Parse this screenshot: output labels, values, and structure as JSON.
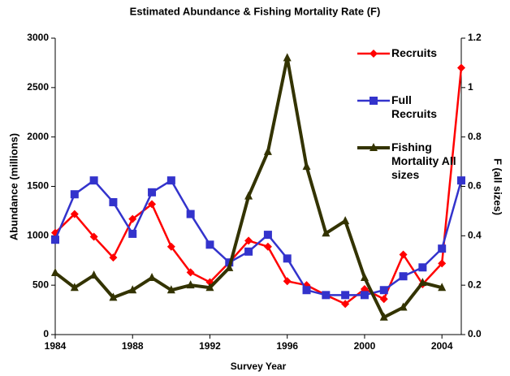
{
  "chart_data": {
    "type": "line",
    "title": "Estimated Abundance & Fishing Mortality Rate (F)",
    "x_label": "Survey Year",
    "y_label": "Abundance (millions)",
    "y2_label": "F (all sizes)",
    "x": [
      1984,
      1985,
      1986,
      1987,
      1988,
      1989,
      1990,
      1991,
      1992,
      1993,
      1994,
      1995,
      1996,
      1997,
      1998,
      1999,
      2000,
      2001,
      2002,
      2003,
      2004,
      2005
    ],
    "xlim": [
      1984,
      2005
    ],
    "xticks": [
      1984,
      1988,
      1992,
      1996,
      2000,
      2004
    ],
    "ylim": [
      0,
      3000
    ],
    "yticks": [
      0,
      500,
      1000,
      1500,
      2000,
      2500,
      3000
    ],
    "y2lim": [
      0,
      1.2
    ],
    "y2ticks": [
      {
        "value": 0,
        "label": "0.0"
      },
      0.2,
      0.4,
      0.6,
      0.8,
      1,
      1.2
    ],
    "legend": "upper right",
    "series": [
      {
        "name": "Recruits",
        "color": "#ff0000",
        "marker": "diamond",
        "values": [
          1030,
          1220,
          990,
          780,
          1170,
          1320,
          890,
          630,
          530,
          730,
          950,
          890,
          540,
          500,
          400,
          310,
          460,
          360,
          810,
          510,
          720,
          2700
        ]
      },
      {
        "name": "Full Recruits",
        "color": "#3333cc",
        "marker": "square",
        "values": [
          960,
          1420,
          1560,
          1340,
          1020,
          1440,
          1560,
          1220,
          910,
          730,
          840,
          1010,
          770,
          450,
          400,
          400,
          400,
          450,
          590,
          680,
          870,
          1560
        ]
      },
      {
        "name": "Fishing Mortality All sizes",
        "color": "#333300",
        "marker": "triangle",
        "axis": "y2",
        "values": [
          0.25,
          0.19,
          0.24,
          0.15,
          0.18,
          0.23,
          0.18,
          0.2,
          0.19,
          0.27,
          0.56,
          0.74,
          1.12,
          0.68,
          0.41,
          0.46,
          0.23,
          0.07,
          0.11,
          0.21,
          0.19,
          null
        ]
      }
    ]
  }
}
